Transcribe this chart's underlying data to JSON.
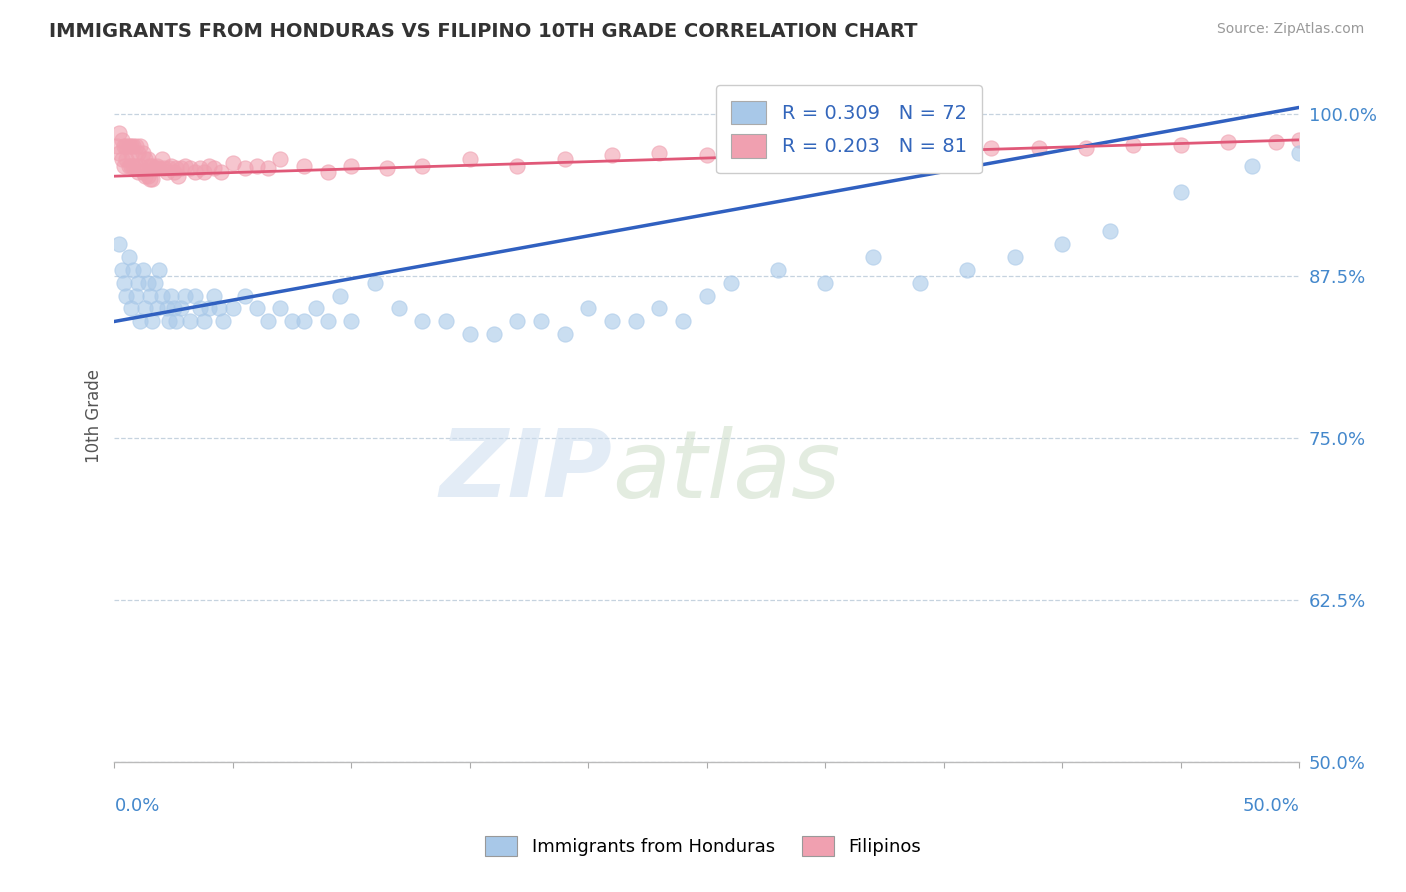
{
  "title": "IMMIGRANTS FROM HONDURAS VS FILIPINO 10TH GRADE CORRELATION CHART",
  "source": "Source: ZipAtlas.com",
  "ylabel": "10th Grade",
  "y_ticks": [
    50.0,
    62.5,
    75.0,
    87.5,
    100.0
  ],
  "x_min": 0.0,
  "x_max": 0.5,
  "y_min": 0.5,
  "y_max": 1.035,
  "legend_blue": "R = 0.309   N = 72",
  "legend_pink": "R = 0.203   N = 81",
  "blue_color": "#a8c8e8",
  "pink_color": "#f0a0b0",
  "trend_blue": "#3060c0",
  "trend_pink": "#e05878",
  "blue_trend_x": [
    0.0,
    0.5
  ],
  "blue_trend_y": [
    0.84,
    1.005
  ],
  "pink_trend_x": [
    0.0,
    0.5
  ],
  "pink_trend_y": [
    0.952,
    0.98
  ],
  "scatter_blue_x": [
    0.002,
    0.003,
    0.004,
    0.005,
    0.006,
    0.007,
    0.008,
    0.009,
    0.01,
    0.011,
    0.012,
    0.013,
    0.014,
    0.015,
    0.016,
    0.017,
    0.018,
    0.019,
    0.02,
    0.022,
    0.023,
    0.024,
    0.025,
    0.026,
    0.028,
    0.03,
    0.032,
    0.034,
    0.036,
    0.038,
    0.04,
    0.042,
    0.044,
    0.046,
    0.05,
    0.055,
    0.06,
    0.065,
    0.07,
    0.075,
    0.08,
    0.085,
    0.09,
    0.095,
    0.1,
    0.11,
    0.12,
    0.13,
    0.14,
    0.15,
    0.16,
    0.17,
    0.18,
    0.19,
    0.2,
    0.21,
    0.22,
    0.23,
    0.24,
    0.25,
    0.26,
    0.28,
    0.3,
    0.32,
    0.34,
    0.36,
    0.38,
    0.4,
    0.42,
    0.45,
    0.48,
    0.5
  ],
  "scatter_blue_y": [
    0.9,
    0.88,
    0.87,
    0.86,
    0.89,
    0.85,
    0.88,
    0.86,
    0.87,
    0.84,
    0.88,
    0.85,
    0.87,
    0.86,
    0.84,
    0.87,
    0.85,
    0.88,
    0.86,
    0.85,
    0.84,
    0.86,
    0.85,
    0.84,
    0.85,
    0.86,
    0.84,
    0.86,
    0.85,
    0.84,
    0.85,
    0.86,
    0.85,
    0.84,
    0.85,
    0.86,
    0.85,
    0.84,
    0.85,
    0.84,
    0.84,
    0.85,
    0.84,
    0.86,
    0.84,
    0.87,
    0.85,
    0.84,
    0.84,
    0.83,
    0.83,
    0.84,
    0.84,
    0.83,
    0.85,
    0.84,
    0.84,
    0.85,
    0.84,
    0.86,
    0.87,
    0.88,
    0.87,
    0.89,
    0.87,
    0.88,
    0.89,
    0.9,
    0.91,
    0.94,
    0.96,
    0.97
  ],
  "scatter_pink_x": [
    0.001,
    0.002,
    0.002,
    0.003,
    0.003,
    0.004,
    0.004,
    0.005,
    0.005,
    0.006,
    0.006,
    0.007,
    0.007,
    0.007,
    0.008,
    0.008,
    0.009,
    0.009,
    0.01,
    0.01,
    0.011,
    0.011,
    0.012,
    0.012,
    0.013,
    0.013,
    0.014,
    0.014,
    0.015,
    0.015,
    0.016,
    0.016,
    0.017,
    0.018,
    0.019,
    0.02,
    0.021,
    0.022,
    0.023,
    0.024,
    0.025,
    0.026,
    0.027,
    0.028,
    0.03,
    0.032,
    0.034,
    0.036,
    0.038,
    0.04,
    0.042,
    0.045,
    0.05,
    0.055,
    0.06,
    0.065,
    0.07,
    0.08,
    0.09,
    0.1,
    0.115,
    0.13,
    0.15,
    0.17,
    0.19,
    0.21,
    0.23,
    0.25,
    0.27,
    0.29,
    0.31,
    0.33,
    0.35,
    0.37,
    0.39,
    0.41,
    0.43,
    0.45,
    0.47,
    0.49,
    0.5
  ],
  "scatter_pink_y": [
    0.975,
    0.985,
    0.97,
    0.98,
    0.965,
    0.975,
    0.96,
    0.975,
    0.965,
    0.975,
    0.96,
    0.975,
    0.96,
    0.97,
    0.975,
    0.96,
    0.975,
    0.96,
    0.97,
    0.955,
    0.975,
    0.96,
    0.97,
    0.955,
    0.965,
    0.952,
    0.965,
    0.952,
    0.96,
    0.95,
    0.96,
    0.95,
    0.958,
    0.96,
    0.958,
    0.965,
    0.958,
    0.955,
    0.958,
    0.96,
    0.955,
    0.958,
    0.952,
    0.958,
    0.96,
    0.958,
    0.955,
    0.958,
    0.955,
    0.96,
    0.958,
    0.955,
    0.962,
    0.958,
    0.96,
    0.958,
    0.965,
    0.96,
    0.955,
    0.96,
    0.958,
    0.96,
    0.965,
    0.96,
    0.965,
    0.968,
    0.97,
    0.968,
    0.97,
    0.972,
    0.97,
    0.972,
    0.972,
    0.974,
    0.974,
    0.974,
    0.976,
    0.976,
    0.978,
    0.978,
    0.98
  ]
}
